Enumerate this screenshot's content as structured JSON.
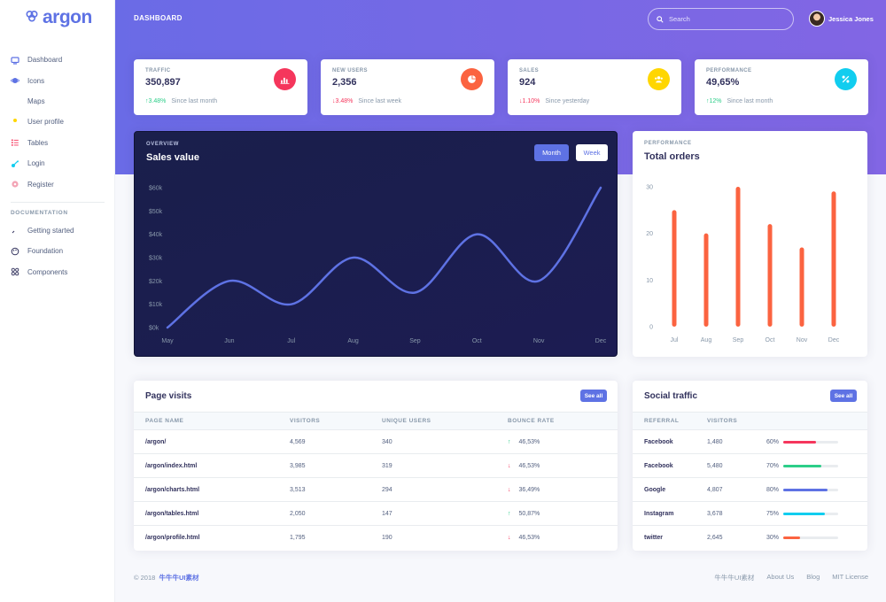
{
  "brand": {
    "name": "argon"
  },
  "header": {
    "title": "DASHBOARD",
    "search_placeholder": "Search",
    "user_name": "Jessica Jones"
  },
  "sidebar": {
    "items": [
      {
        "label": "Dashboard",
        "icon": "tv-icon",
        "color": "#5e72e4"
      },
      {
        "label": "Icons",
        "icon": "planet-icon",
        "color": "#5e72e4"
      },
      {
        "label": "Maps",
        "icon": "pin-icon",
        "color": "#fb6340"
      },
      {
        "label": "User profile",
        "icon": "user-icon",
        "color": "#ffd600"
      },
      {
        "label": "Tables",
        "icon": "list-icon",
        "color": "#f5365c"
      },
      {
        "label": "Login",
        "icon": "key-icon",
        "color": "#11cdef"
      },
      {
        "label": "Register",
        "icon": "circle-icon",
        "color": "#f3a4b5"
      }
    ],
    "doc_heading": "DOCUMENTATION",
    "doc_items": [
      {
        "label": "Getting started",
        "icon": "spaceship-icon"
      },
      {
        "label": "Foundation",
        "icon": "palette-icon"
      },
      {
        "label": "Components",
        "icon": "ui-icon"
      }
    ]
  },
  "stats": [
    {
      "title": "TRAFFIC",
      "value": "350,897",
      "delta": "3.48%",
      "direction": "up",
      "since": "Since last month",
      "icon": "chart-bar-icon",
      "color": "#f5365c"
    },
    {
      "title": "NEW USERS",
      "value": "2,356",
      "delta": "3.48%",
      "direction": "down",
      "since": "Since last week",
      "icon": "chart-pie-icon",
      "color": "#fb6340"
    },
    {
      "title": "SALES",
      "value": "924",
      "delta": "1.10%",
      "direction": "down",
      "since": "Since yesterday",
      "icon": "users-icon",
      "color": "#ffd600"
    },
    {
      "title": "PERFORMANCE",
      "value": "49,65%",
      "delta": "12%",
      "direction": "up",
      "since": "Since last month",
      "icon": "percent-icon",
      "color": "#11cdef"
    }
  ],
  "sales_card": {
    "eyebrow": "OVERVIEW",
    "title": "Sales value",
    "btn_month": "Month",
    "btn_week": "Week"
  },
  "orders_card": {
    "eyebrow": "PERFORMANCE",
    "title": "Total orders"
  },
  "chart_data": [
    {
      "type": "line",
      "title": "Sales value",
      "x": [
        "May",
        "Jun",
        "Jul",
        "Aug",
        "Sep",
        "Oct",
        "Nov",
        "Dec"
      ],
      "values": [
        0,
        20,
        10,
        30,
        15,
        40,
        20,
        60
      ],
      "ytick_labels": [
        "$0k",
        "$10k",
        "$20k",
        "$30k",
        "$40k",
        "$50k",
        "$60k"
      ],
      "ylim": [
        0,
        60
      ],
      "color": "#5e72e4",
      "grid": false
    },
    {
      "type": "bar",
      "title": "Total orders",
      "categories": [
        "Jul",
        "Aug",
        "Sep",
        "Oct",
        "Nov",
        "Dec"
      ],
      "values": [
        25,
        20,
        30,
        22,
        17,
        29
      ],
      "yticks": [
        0,
        10,
        20,
        30
      ],
      "ylim": [
        0,
        30
      ],
      "color": "#fb6340",
      "grid": false
    }
  ],
  "page_visits": {
    "title": "Page visits",
    "see_all": "See all",
    "columns": [
      "PAGE NAME",
      "VISITORS",
      "UNIQUE USERS",
      "BOUNCE RATE"
    ],
    "rows": [
      {
        "page": "/argon/",
        "visitors": "4,569",
        "unique": "340",
        "bounce": "46,53%",
        "direction": "up"
      },
      {
        "page": "/argon/index.html",
        "visitors": "3,985",
        "unique": "319",
        "bounce": "46,53%",
        "direction": "down"
      },
      {
        "page": "/argon/charts.html",
        "visitors": "3,513",
        "unique": "294",
        "bounce": "36,49%",
        "direction": "down"
      },
      {
        "page": "/argon/tables.html",
        "visitors": "2,050",
        "unique": "147",
        "bounce": "50,87%",
        "direction": "up"
      },
      {
        "page": "/argon/profile.html",
        "visitors": "1,795",
        "unique": "190",
        "bounce": "46,53%",
        "direction": "down"
      }
    ]
  },
  "social_traffic": {
    "title": "Social traffic",
    "see_all": "See all",
    "columns": [
      "REFERRAL",
      "VISITORS",
      ""
    ],
    "rows": [
      {
        "referral": "Facebook",
        "visitors": "1,480",
        "percent": "60%",
        "fill": 0.6,
        "color": "#f5365c"
      },
      {
        "referral": "Facebook",
        "visitors": "5,480",
        "percent": "70%",
        "fill": 0.7,
        "color": "#2dce89"
      },
      {
        "referral": "Google",
        "visitors": "4,807",
        "percent": "80%",
        "fill": 0.8,
        "color": "#5e72e4"
      },
      {
        "referral": "Instagram",
        "visitors": "3,678",
        "percent": "75%",
        "fill": 0.75,
        "color": "#11cdef"
      },
      {
        "referral": "twitter",
        "visitors": "2,645",
        "percent": "30%",
        "fill": 0.3,
        "color": "#fb6340"
      }
    ]
  },
  "footer": {
    "copyright": "© 2018",
    "brand_link": "牛牛牛UI素材",
    "links": [
      "牛牛牛UI素材",
      "About Us",
      "Blog",
      "MIT License"
    ]
  }
}
